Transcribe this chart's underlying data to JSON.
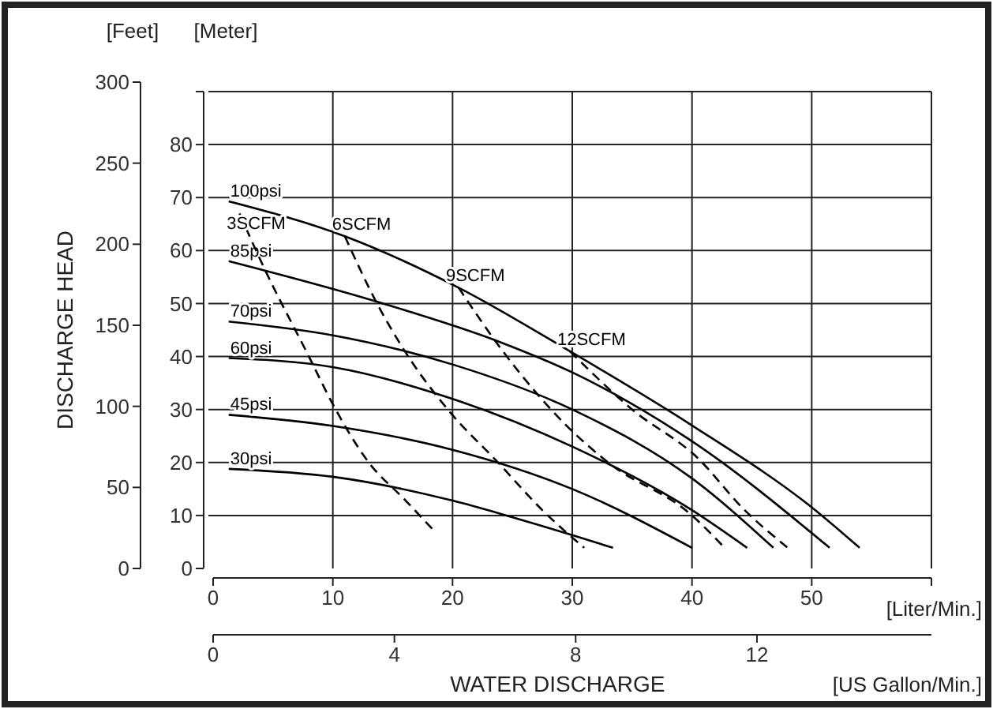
{
  "chart_data": {
    "type": "line",
    "xlabel": "[Liter/Min.]",
    "x2label": "[US Gallon/Min.]",
    "ylabel": "[Meter]",
    "y2label": "[Feet]",
    "annotations": [
      "DISCHARGE HEAD",
      "WATER DISCHARGE"
    ],
    "xlim": [
      0,
      60
    ],
    "xticks": [
      0,
      10,
      20,
      30,
      40,
      50,
      {
        "value": 60,
        "label": null
      }
    ],
    "x2lim": [
      0,
      15.85
    ],
    "x2ticks": [
      0,
      4,
      8,
      12
    ],
    "ylim": [
      0,
      90
    ],
    "yticks": [
      0,
      10,
      20,
      30,
      40,
      50,
      60,
      70,
      80,
      {
        "value": 90,
        "label": null
      }
    ],
    "y2lim": [
      0,
      300
    ],
    "y2ticks": [
      0,
      50,
      100,
      150,
      200,
      250,
      300
    ],
    "grid": true,
    "series": [
      {
        "name": "100psi",
        "color": "#000000",
        "line_style": "solid",
        "x": [
          1.3,
          11,
          20.5,
          29.8,
          40,
          50.3,
          54
        ],
        "values": [
          69.3,
          62.7,
          53,
          41,
          27,
          11,
          3.9
        ]
      },
      {
        "name": "85psi",
        "color": "#000000",
        "line_style": "solid",
        "x": [
          1.3,
          13.6,
          24,
          30,
          40,
          51.5
        ],
        "values": [
          58,
          50.4,
          42.7,
          37,
          24,
          3.9
        ]
      },
      {
        "name": "70psi",
        "color": "#000000",
        "line_style": "solid",
        "x": [
          1.3,
          10,
          20,
          30,
          40,
          46.8
        ],
        "values": [
          46.6,
          44,
          38.5,
          30,
          17,
          3.9
        ]
      },
      {
        "name": "60psi",
        "color": "#000000",
        "line_style": "solid",
        "x": [
          1.3,
          10,
          20,
          30,
          40,
          44.6
        ],
        "values": [
          39.7,
          38,
          32,
          23,
          11,
          3.9
        ]
      },
      {
        "name": "45psi",
        "color": "#000000",
        "line_style": "solid",
        "x": [
          1.3,
          10,
          20,
          30,
          40
        ],
        "values": [
          29,
          26.9,
          22.4,
          15,
          3.9
        ]
      },
      {
        "name": "30psi",
        "color": "#000000",
        "line_style": "solid",
        "x": [
          1.3,
          10,
          20,
          24.5,
          30,
          33.4
        ],
        "values": [
          18.8,
          17.3,
          12.8,
          10,
          6.3,
          3.9
        ]
      },
      {
        "name": "3SCFM",
        "color": "#000000",
        "line_style": "dashed",
        "x": [
          2.2,
          4.2,
          8,
          10,
          13,
          16,
          18.5
        ],
        "values": [
          67,
          57,
          40,
          31,
          20,
          13,
          7
        ]
      },
      {
        "name": "6SCFM",
        "color": "#000000",
        "line_style": "dashed",
        "x": [
          11,
          13.6,
          16.3,
          19.6,
          23.8,
          27.5,
          31
        ],
        "values": [
          62.7,
          50.4,
          40,
          30,
          20,
          11,
          3.9
        ]
      },
      {
        "name": "9SCFM",
        "color": "#000000",
        "line_style": "dashed",
        "x": [
          20.5,
          24.2,
          29.5,
          33,
          40,
          42.6
        ],
        "values": [
          53,
          41,
          27,
          20,
          10,
          4.2
        ]
      },
      {
        "name": "12SCFM",
        "color": "#000000",
        "line_style": "dashed",
        "x": [
          29.8,
          35,
          40.4,
          44.4,
          48
        ],
        "values": [
          41,
          30,
          21,
          11,
          3.9
        ]
      }
    ]
  }
}
